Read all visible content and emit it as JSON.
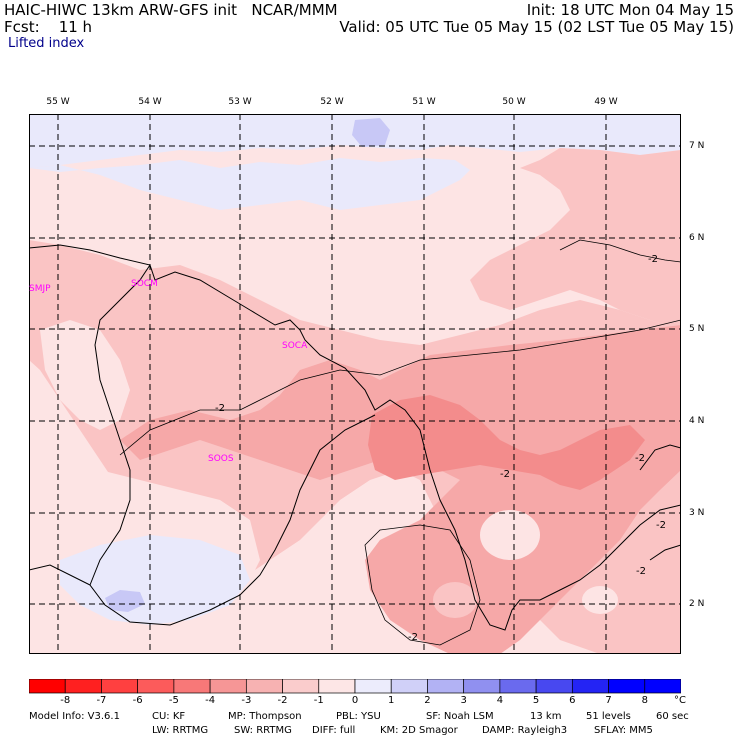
{
  "header": {
    "left_line1": "HAIC-HIWC 13km ARW-GFS init   NCAR/MMM",
    "left_line2": "Fcst:    11 h",
    "right_line1": "Init: 18 UTC Mon 04 May 15",
    "right_line2": "Valid: 05 UTC Tue 05 May 15 (02 LST Tue 05 May 15)",
    "field_label": "Lifted index"
  },
  "map": {
    "lon_labels": [
      "55 W",
      "54 W",
      "53 W",
      "52 W",
      "51 W",
      "50 W",
      "49 W"
    ],
    "lat_labels": [
      "7 N",
      "6 N",
      "5 N",
      "4 N",
      "3 N",
      "2 N"
    ],
    "stations": [
      "SMJP",
      "SOCM",
      "SOCA",
      "SOOS"
    ],
    "contour_labels": [
      "-2",
      "-2",
      "-2",
      "-2",
      "-2",
      "-2",
      "-2"
    ],
    "colors": {
      "red_deep": "#f38c8c",
      "red_mid": "#f6a8a8",
      "red_light": "#fac4c4",
      "pink_pale": "#fde4e4",
      "lav_light": "#e9e9fb",
      "lav_mid": "#c8c8f6"
    }
  },
  "colorbar": {
    "ticks": [
      "-8",
      "-7",
      "-6",
      "-5",
      "-4",
      "-3",
      "-2",
      "-1",
      "0",
      "1",
      "2",
      "3",
      "4",
      "5",
      "6",
      "7",
      "8"
    ],
    "unit": "°C",
    "colors": [
      "#ff0000",
      "#ff2020",
      "#ff4040",
      "#fc5b5b",
      "#f87878",
      "#f69696",
      "#f7b2b2",
      "#facccc",
      "#fde6e6",
      "#ececfc",
      "#d0d0f8",
      "#b2b2f4",
      "#9090f0",
      "#6a6aee",
      "#4848f0",
      "#2424f4",
      "#0000ff"
    ]
  },
  "footer": {
    "line1": [
      "Model Info: V3.6.1",
      "CU: KF",
      "MP: Thompson",
      "PBL: YSU",
      "SF: Noah LSM",
      "13 km",
      "51 levels",
      "60 sec"
    ],
    "line2": [
      "LW: RRTMG",
      "SW: RRTMG",
      "DIFF: full",
      "KM: 2D Smagor",
      "DAMP: Rayleigh3",
      "SFLAY: MM5"
    ]
  }
}
